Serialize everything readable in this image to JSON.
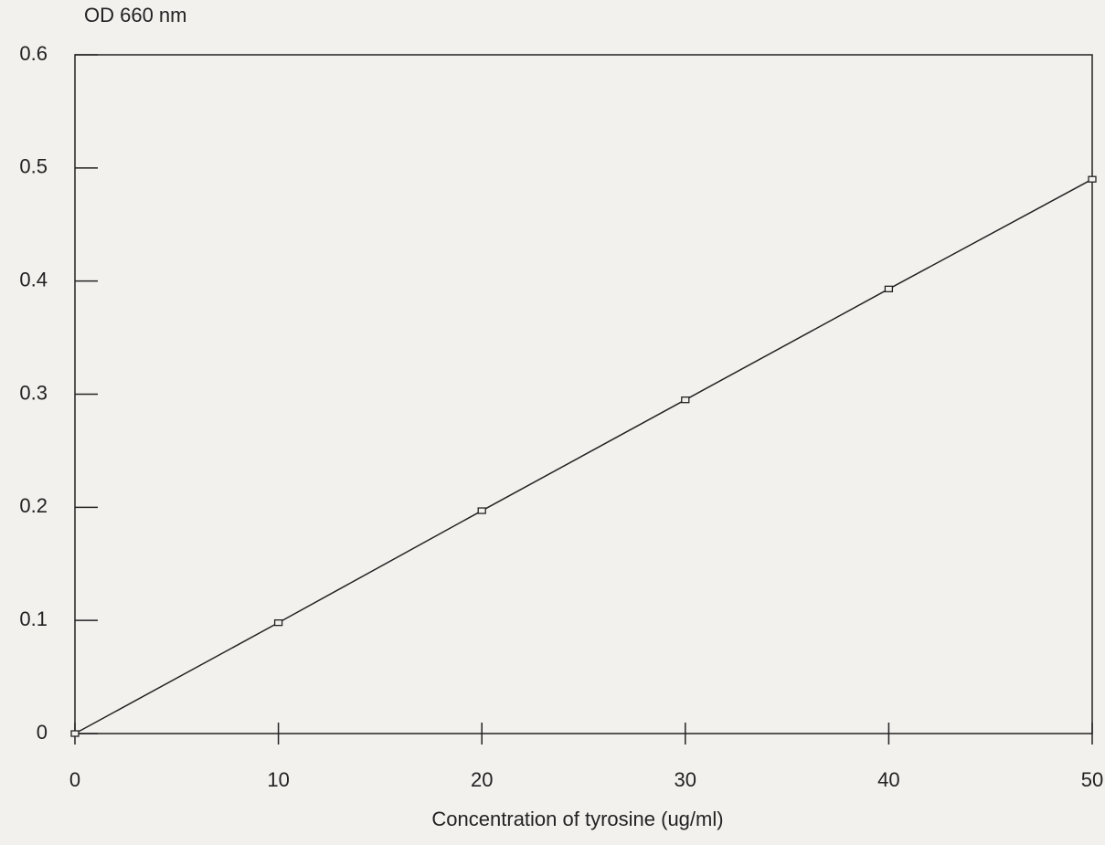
{
  "chart_data": {
    "type": "line",
    "ylabel": "OD 660 nm",
    "xlabel": "Concentration of tyrosine (ug/ml)",
    "x": [
      0,
      10,
      20,
      30,
      40,
      50
    ],
    "series": [
      {
        "color": "#222222",
        "values": [
          0,
          0.098,
          0.197,
          0.295,
          0.393,
          0.49
        ]
      }
    ],
    "xlim": [
      0,
      50
    ],
    "xticks": [
      0,
      10,
      20,
      30,
      40,
      50
    ],
    "ylim": [
      0,
      0.6
    ],
    "yticks": [
      0,
      0.1,
      0.2,
      0.3,
      0.4,
      0.5,
      0.6
    ],
    "grid": false,
    "markers": "square"
  }
}
